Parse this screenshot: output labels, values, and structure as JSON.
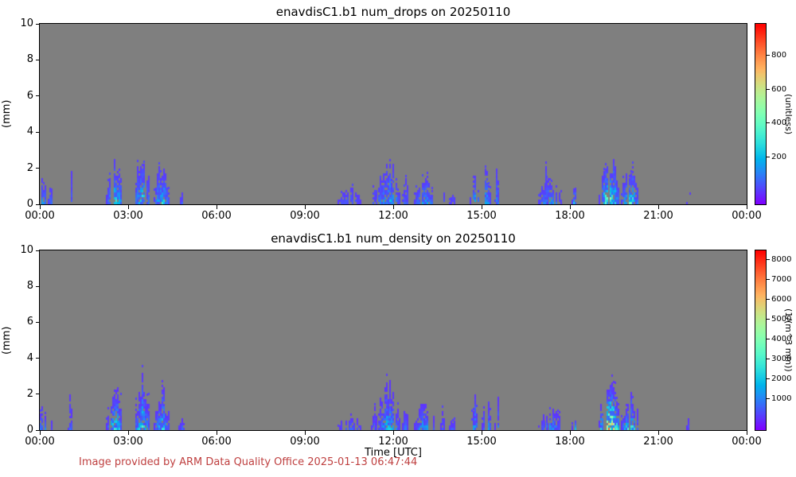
{
  "page": {
    "footer_note": "Image provided by ARM Data Quality Office 2025-01-13 06:47:44",
    "footer_color": "#bf4040",
    "background": "#ffffff"
  },
  "chart_data": [
    {
      "type": "heatmap",
      "title": "enavdisC1.b1 num_drops on 20250110",
      "ylabel": "(mm)",
      "xlabel": "",
      "colorbar_label": "(unitless)",
      "colormap": "rainbow",
      "plot_background": "#7f7f7f",
      "ylim": [
        0,
        10
      ],
      "xlim_hours": [
        0,
        24
      ],
      "x_ticks": [
        "00:00",
        "03:00",
        "06:00",
        "09:00",
        "12:00",
        "15:00",
        "18:00",
        "21:00",
        "00:00"
      ],
      "y_ticks": [
        0,
        2,
        4,
        6,
        8,
        10
      ],
      "colorbar_ticks": [
        200,
        400,
        600,
        800
      ],
      "colorbar_range": [
        -80,
        985
      ],
      "seed": 7,
      "events": [
        {
          "t": 0.08,
          "w": 0.27,
          "h": 1.6,
          "peak": 200
        },
        {
          "t": 0.35,
          "w": 0.15,
          "h": 1.0,
          "peak": 90
        },
        {
          "t": 1.01,
          "w": 0.14,
          "h": 2.2,
          "peak": 100
        },
        {
          "t": 2.54,
          "w": 0.59,
          "h": 2.5,
          "peak": 310
        },
        {
          "t": 3.46,
          "w": 0.54,
          "h": 2.8,
          "peak": 300
        },
        {
          "t": 4.11,
          "w": 0.51,
          "h": 2.3,
          "peak": 280
        },
        {
          "t": 4.81,
          "w": 0.19,
          "h": 0.55,
          "peak": 80
        },
        {
          "t": 10.49,
          "w": 0.76,
          "h": 0.85,
          "peak": 90
        },
        {
          "t": 11.35,
          "w": 0.2,
          "h": 1.2,
          "peak": 100
        },
        {
          "t": 11.8,
          "w": 0.85,
          "h": 2.5,
          "peak": 230
        },
        {
          "t": 12.38,
          "w": 0.19,
          "h": 1.5,
          "peak": 110
        },
        {
          "t": 13.03,
          "w": 0.68,
          "h": 1.6,
          "peak": 200
        },
        {
          "t": 13.66,
          "w": 0.14,
          "h": 1.1,
          "peak": 90
        },
        {
          "t": 14.0,
          "w": 0.19,
          "h": 0.7,
          "peak": 80
        },
        {
          "t": 14.76,
          "w": 0.32,
          "h": 1.9,
          "peak": 215
        },
        {
          "t": 15.14,
          "w": 0.3,
          "h": 1.9,
          "peak": 215
        },
        {
          "t": 15.51,
          "w": 0.16,
          "h": 2.6,
          "peak": 150
        },
        {
          "t": 17.15,
          "w": 0.1,
          "h": 2.6,
          "peak": 110
        },
        {
          "t": 17.3,
          "w": 0.78,
          "h": 1.4,
          "peak": 170
        },
        {
          "t": 18.13,
          "w": 0.16,
          "h": 1.05,
          "peak": 310
        },
        {
          "t": 19.32,
          "w": 0.7,
          "h": 2.9,
          "peak": 560
        },
        {
          "t": 20.03,
          "w": 0.59,
          "h": 2.1,
          "peak": 390
        },
        {
          "t": 22.03,
          "w": 0.16,
          "h": 0.7,
          "peak": 90
        }
      ]
    },
    {
      "type": "heatmap",
      "title": "enavdisC1.b1 num_density on 20250110",
      "ylabel": "(mm)",
      "xlabel": "Time [UTC]",
      "colorbar_label": "(1/(m^3 mm))",
      "colormap": "rainbow",
      "plot_background": "#7f7f7f",
      "ylim": [
        0,
        10
      ],
      "xlim_hours": [
        0,
        24
      ],
      "x_ticks": [
        "00:00",
        "03:00",
        "06:00",
        "09:00",
        "12:00",
        "15:00",
        "18:00",
        "21:00",
        "00:00"
      ],
      "y_ticks": [
        0,
        2,
        4,
        6,
        8,
        10
      ],
      "colorbar_ticks": [
        1000,
        2000,
        3000,
        4000,
        5000,
        6000,
        7000,
        8000
      ],
      "colorbar_range": [
        -600,
        8440
      ],
      "seed": 13,
      "events": [
        {
          "t": 0.08,
          "w": 0.27,
          "h": 1.6,
          "peak": 1800
        },
        {
          "t": 0.35,
          "w": 0.15,
          "h": 1.0,
          "peak": 800
        },
        {
          "t": 1.01,
          "w": 0.14,
          "h": 2.2,
          "peak": 900
        },
        {
          "t": 2.54,
          "w": 0.59,
          "h": 2.5,
          "peak": 2750
        },
        {
          "t": 3.46,
          "w": 0.54,
          "h": 2.8,
          "peak": 2650
        },
        {
          "t": 4.11,
          "w": 0.51,
          "h": 2.3,
          "peak": 2500
        },
        {
          "t": 4.81,
          "w": 0.19,
          "h": 0.55,
          "peak": 700
        },
        {
          "t": 10.49,
          "w": 0.76,
          "h": 0.85,
          "peak": 800
        },
        {
          "t": 11.35,
          "w": 0.2,
          "h": 1.2,
          "peak": 900
        },
        {
          "t": 11.8,
          "w": 0.85,
          "h": 2.5,
          "peak": 2050
        },
        {
          "t": 12.38,
          "w": 0.19,
          "h": 1.5,
          "peak": 1000
        },
        {
          "t": 13.03,
          "w": 0.68,
          "h": 1.6,
          "peak": 1800
        },
        {
          "t": 13.66,
          "w": 0.14,
          "h": 1.1,
          "peak": 800
        },
        {
          "t": 14.0,
          "w": 0.19,
          "h": 0.7,
          "peak": 700
        },
        {
          "t": 14.76,
          "w": 0.32,
          "h": 1.9,
          "peak": 1900
        },
        {
          "t": 15.14,
          "w": 0.3,
          "h": 1.9,
          "peak": 1900
        },
        {
          "t": 15.51,
          "w": 0.16,
          "h": 2.6,
          "peak": 1350
        },
        {
          "t": 17.15,
          "w": 0.1,
          "h": 2.6,
          "peak": 1000
        },
        {
          "t": 17.3,
          "w": 0.78,
          "h": 1.4,
          "peak": 1500
        },
        {
          "t": 18.13,
          "w": 0.16,
          "h": 1.05,
          "peak": 2750
        },
        {
          "t": 19.32,
          "w": 0.7,
          "h": 2.9,
          "peak": 6900
        },
        {
          "t": 20.03,
          "w": 0.59,
          "h": 2.1,
          "peak": 3450
        },
        {
          "t": 22.03,
          "w": 0.16,
          "h": 0.7,
          "peak": 800
        }
      ]
    }
  ]
}
